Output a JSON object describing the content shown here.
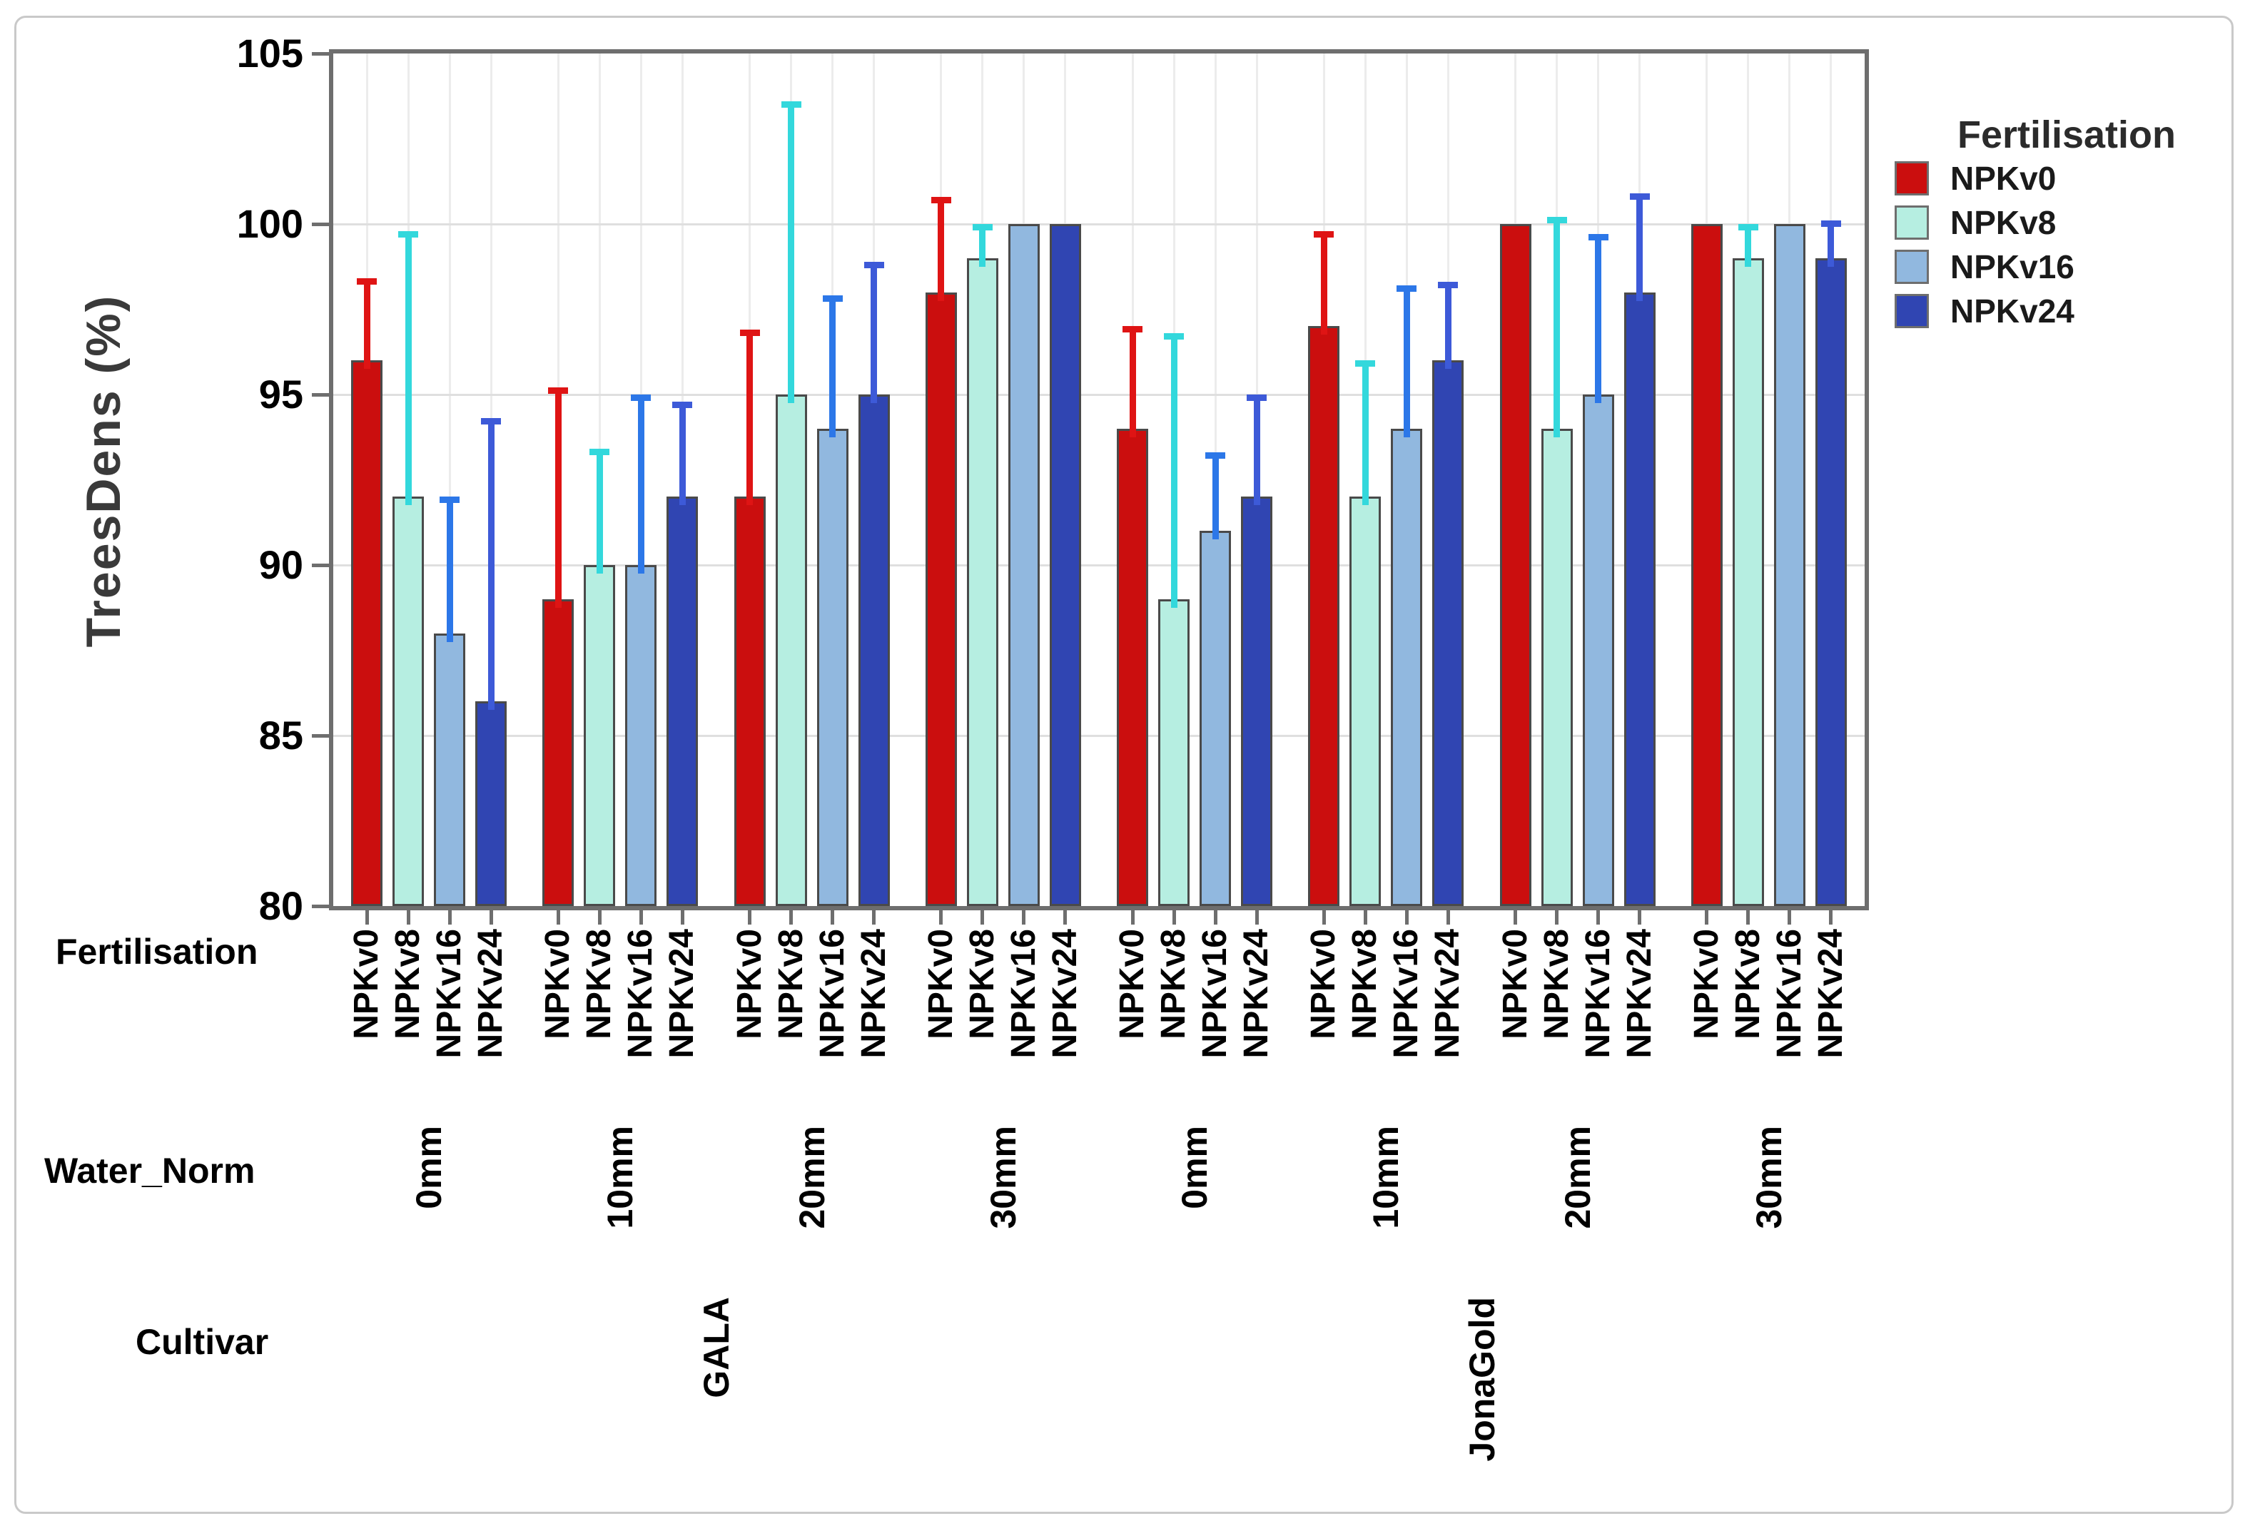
{
  "y_axis": {
    "title": "TreesDens (%)"
  },
  "row_headers": {
    "fertilisation": "Fertilisation",
    "water": "Water_Norm",
    "cultivar": "Cultivar"
  },
  "legend": {
    "title": "Fertilisation"
  },
  "colors": {
    "bar_outline": "#4A4A4A",
    "panel_border": "#6E6E6E",
    "h_grid": "#DFDFDF",
    "v_grid": "#ECECEC",
    "tick": "#6E6E6E",
    "frame_border": "#C9C9C9"
  },
  "chart_data": {
    "type": "bar",
    "title": "",
    "xlabel": "",
    "ylabel": "TreesDens (%)",
    "ylim": [
      80,
      105
    ],
    "yticks": [
      80,
      85,
      90,
      95,
      100,
      105
    ],
    "grid": true,
    "legend_position": "right",
    "legend_title": "Fertilisation",
    "error_bars": "upper, with top cap",
    "xlabel_rows": [
      "Fertilisation",
      "Water_Norm",
      "Cultivar"
    ],
    "series": [
      {
        "name": "NPKv0",
        "fill": "#CB0E0E",
        "whisker": "#DF1414"
      },
      {
        "name": "NPKv8",
        "fill": "#B6EEE1",
        "whisker": "#33D8DC"
      },
      {
        "name": "NPKv16",
        "fill": "#91B8DF",
        "whisker": "#2C77E8"
      },
      {
        "name": "NPKv24",
        "fill": "#3045B2",
        "whisker": "#3D5AD8"
      }
    ],
    "cultivars": [
      {
        "name": "GALA",
        "waters": [
          {
            "water": "0mm",
            "values": [
              96,
              92,
              88,
              86
            ],
            "error_top": [
              98.4,
              99.8,
              92.0,
              94.3
            ]
          },
          {
            "water": "10mm",
            "values": [
              89,
              90,
              90,
              92
            ],
            "error_top": [
              95.2,
              93.4,
              95.0,
              94.8
            ]
          },
          {
            "water": "20mm",
            "values": [
              92,
              95,
              94,
              95
            ],
            "error_top": [
              96.9,
              103.6,
              97.9,
              98.9
            ]
          },
          {
            "water": "30mm",
            "values": [
              98,
              99,
              100,
              100
            ],
            "error_top": [
              100.8,
              100.0,
              null,
              null
            ]
          }
        ]
      },
      {
        "name": "JonaGold",
        "waters": [
          {
            "water": "0mm",
            "values": [
              94,
              89,
              91,
              92
            ],
            "error_top": [
              97.0,
              96.8,
              93.3,
              95.0
            ]
          },
          {
            "water": "10mm",
            "values": [
              97,
              92,
              94,
              96
            ],
            "error_top": [
              99.8,
              96.0,
              98.2,
              98.3
            ]
          },
          {
            "water": "20mm",
            "values": [
              100,
              94,
              95,
              98
            ],
            "error_top": [
              null,
              100.2,
              99.7,
              100.9
            ]
          },
          {
            "water": "30mm",
            "values": [
              100,
              99,
              100,
              99
            ],
            "error_top": [
              null,
              100.0,
              null,
              100.1
            ]
          }
        ]
      }
    ]
  }
}
